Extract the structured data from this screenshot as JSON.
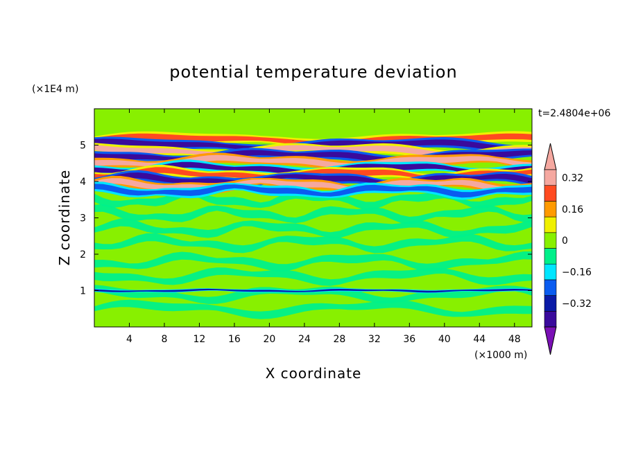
{
  "chart_data": {
    "type": "heatmap",
    "title": "potential temperature deviation",
    "xlabel": "X coordinate",
    "ylabel": "Z coordinate",
    "x_unit": "(×1000 m)",
    "y_unit": "(×1E4 m)",
    "time_label": "t=2.4804e+06",
    "xlim": [
      0,
      50
    ],
    "ylim": [
      0,
      6
    ],
    "x_ticks": [
      "4",
      "8",
      "12",
      "16",
      "20",
      "24",
      "28",
      "32",
      "36",
      "40",
      "44",
      "48"
    ],
    "y_ticks": [
      "1",
      "2",
      "3",
      "4",
      "5"
    ],
    "grid": false,
    "colorbar": {
      "placement": "right",
      "levels": [
        -0.4,
        -0.32,
        -0.24,
        -0.16,
        -0.08,
        0,
        0.08,
        0.16,
        0.24,
        0.32,
        0.4
      ],
      "tick_labels": [
        "0.32",
        "0.16",
        "0",
        "−0.16",
        "−0.32"
      ],
      "tick_values": [
        0.32,
        0.16,
        0,
        -0.16,
        -0.32
      ],
      "colors_low_to_high": [
        "#7a10b5",
        "#3a0a9c",
        "#0a1aa6",
        "#0a5cf0",
        "#00e6ff",
        "#00f08a",
        "#88f000",
        "#f0f000",
        "#ff9a00",
        "#ff4a20",
        "#f5a8a0"
      ]
    },
    "field_description": "Near-zero field (green bands) below 3.5; strong alternating positive/negative layers between 3.7 and 5.3 (x1E4 m); weak disturbance near z=1.",
    "layers": [
      {
        "z": 5.15,
        "value": 0.28
      },
      {
        "z": 5.0,
        "value": -0.38
      },
      {
        "z": 4.85,
        "value": 0.34
      },
      {
        "z": 4.7,
        "value": -0.36
      },
      {
        "z": 4.55,
        "value": 0.38
      },
      {
        "z": 4.35,
        "value": -0.34
      },
      {
        "z": 4.2,
        "value": 0.3
      },
      {
        "z": 4.05,
        "value": -0.4
      },
      {
        "z": 3.9,
        "value": 0.36
      },
      {
        "z": 3.75,
        "value": -0.2
      },
      {
        "z": 1.0,
        "value": -0.3
      }
    ]
  }
}
